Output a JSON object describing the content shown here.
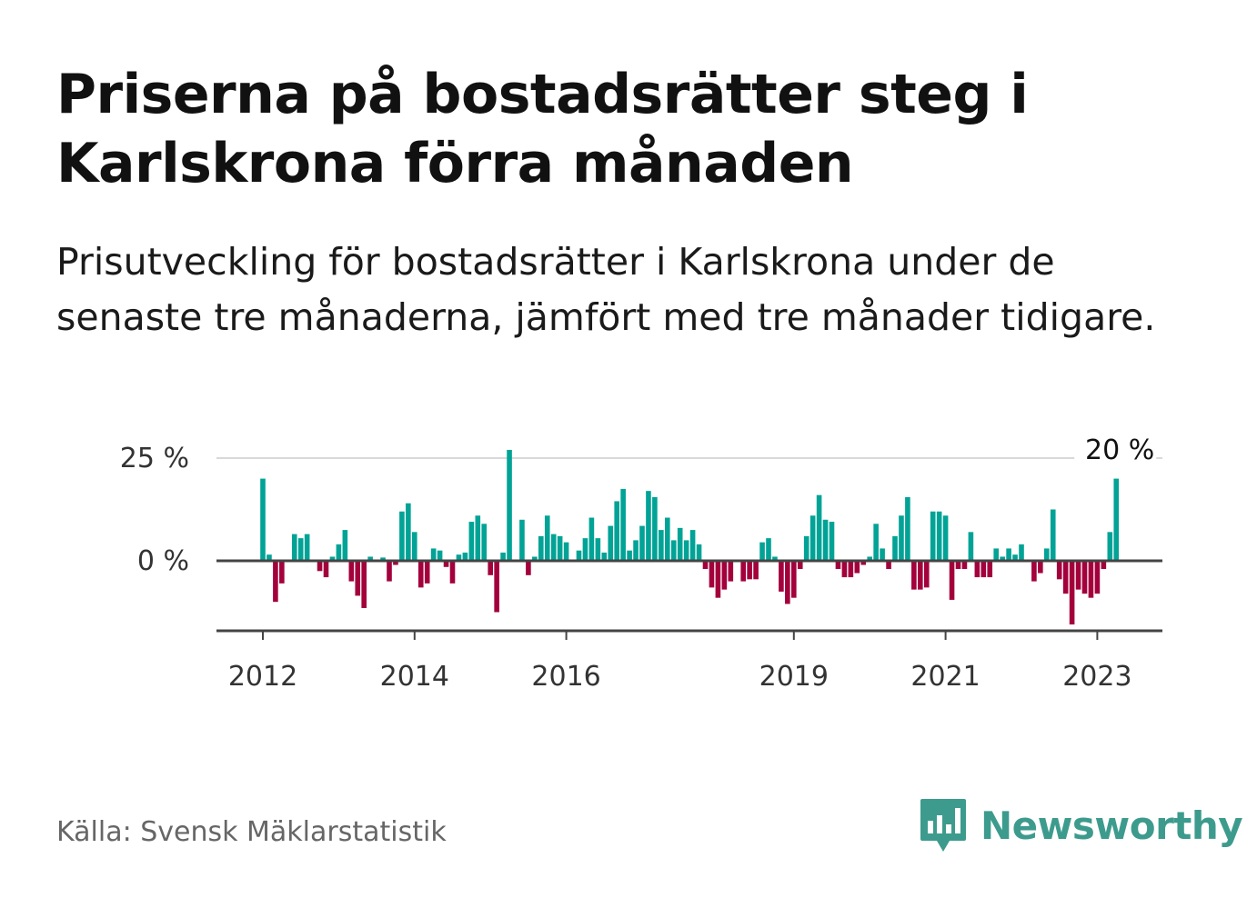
{
  "title": "Priserna på bostadsrätter steg i Karlskrona förra månaden",
  "subtitle": "Prisutveckling för bostadsrätter i Karlskrona under de senaste tre månaderna, jämfört med tre månader tidigare.",
  "source": "Källa: Svensk Mäklarstatistik",
  "logo": {
    "text": "Newsworthy",
    "icon": "bar-chart-speech-bubble-icon"
  },
  "colors": {
    "positive": "#00a396",
    "negative": "#a3003c",
    "grid": "#d9d9d9",
    "axis": "#444444",
    "brand": "#3d9b8d"
  },
  "chart_data": {
    "type": "bar",
    "title": "",
    "xlabel": "",
    "ylabel": "",
    "x_start": "2012-01",
    "ylim": [
      -18,
      27
    ],
    "y_ticks": [
      {
        "value": 0,
        "label": "0 %"
      },
      {
        "value": 25,
        "label": "25 %"
      }
    ],
    "x_ticks": [
      {
        "value": "2012-01",
        "label": "2012"
      },
      {
        "value": "2014-01",
        "label": "2014"
      },
      {
        "value": "2016-01",
        "label": "2016"
      },
      {
        "value": "2019-01",
        "label": "2019"
      },
      {
        "value": "2021-01",
        "label": "2021"
      },
      {
        "value": "2023-01",
        "label": "2023"
      }
    ],
    "grid": true,
    "annotation": {
      "label": "20 %",
      "target": "last"
    },
    "values": [
      20,
      1.5,
      -10,
      -5.5,
      0,
      6.5,
      5.5,
      6.5,
      0,
      -2.5,
      -4,
      1,
      4,
      7.5,
      -5,
      -8.5,
      -11.5,
      1,
      0,
      0.8,
      -5,
      -1,
      12,
      14,
      7,
      -6.5,
      -5.5,
      3,
      2.5,
      -1.5,
      -5.5,
      1.5,
      2,
      9.5,
      11,
      9,
      -3.5,
      -12.5,
      2,
      27,
      0,
      10,
      -3.5,
      1,
      6,
      11,
      6.5,
      6,
      4.5,
      0,
      2.5,
      5.5,
      10.5,
      5.5,
      2,
      8.5,
      14.5,
      17.5,
      2.5,
      5,
      8.5,
      17,
      15.5,
      7.5,
      10.5,
      5,
      8,
      5,
      7.5,
      4,
      -2,
      -6.5,
      -9,
      -7,
      -5,
      0,
      -5,
      -4.5,
      -4.5,
      4.5,
      5.5,
      1,
      -7.5,
      -10.5,
      -9,
      -2,
      6,
      11,
      16,
      10,
      9.5,
      -2,
      -4,
      -4,
      -3,
      -1,
      1,
      9,
      3,
      -2,
      6,
      11,
      15.5,
      -7,
      -7,
      -6.5,
      12,
      12,
      11,
      -9.5,
      -2,
      -2,
      7,
      -4,
      -4,
      -4,
      3,
      1,
      3,
      1.5,
      4,
      0,
      -5,
      -3,
      3,
      12.5,
      -4.5,
      -8,
      -15.5,
      -7,
      -8,
      -9,
      -8,
      -2,
      7,
      20
    ]
  }
}
